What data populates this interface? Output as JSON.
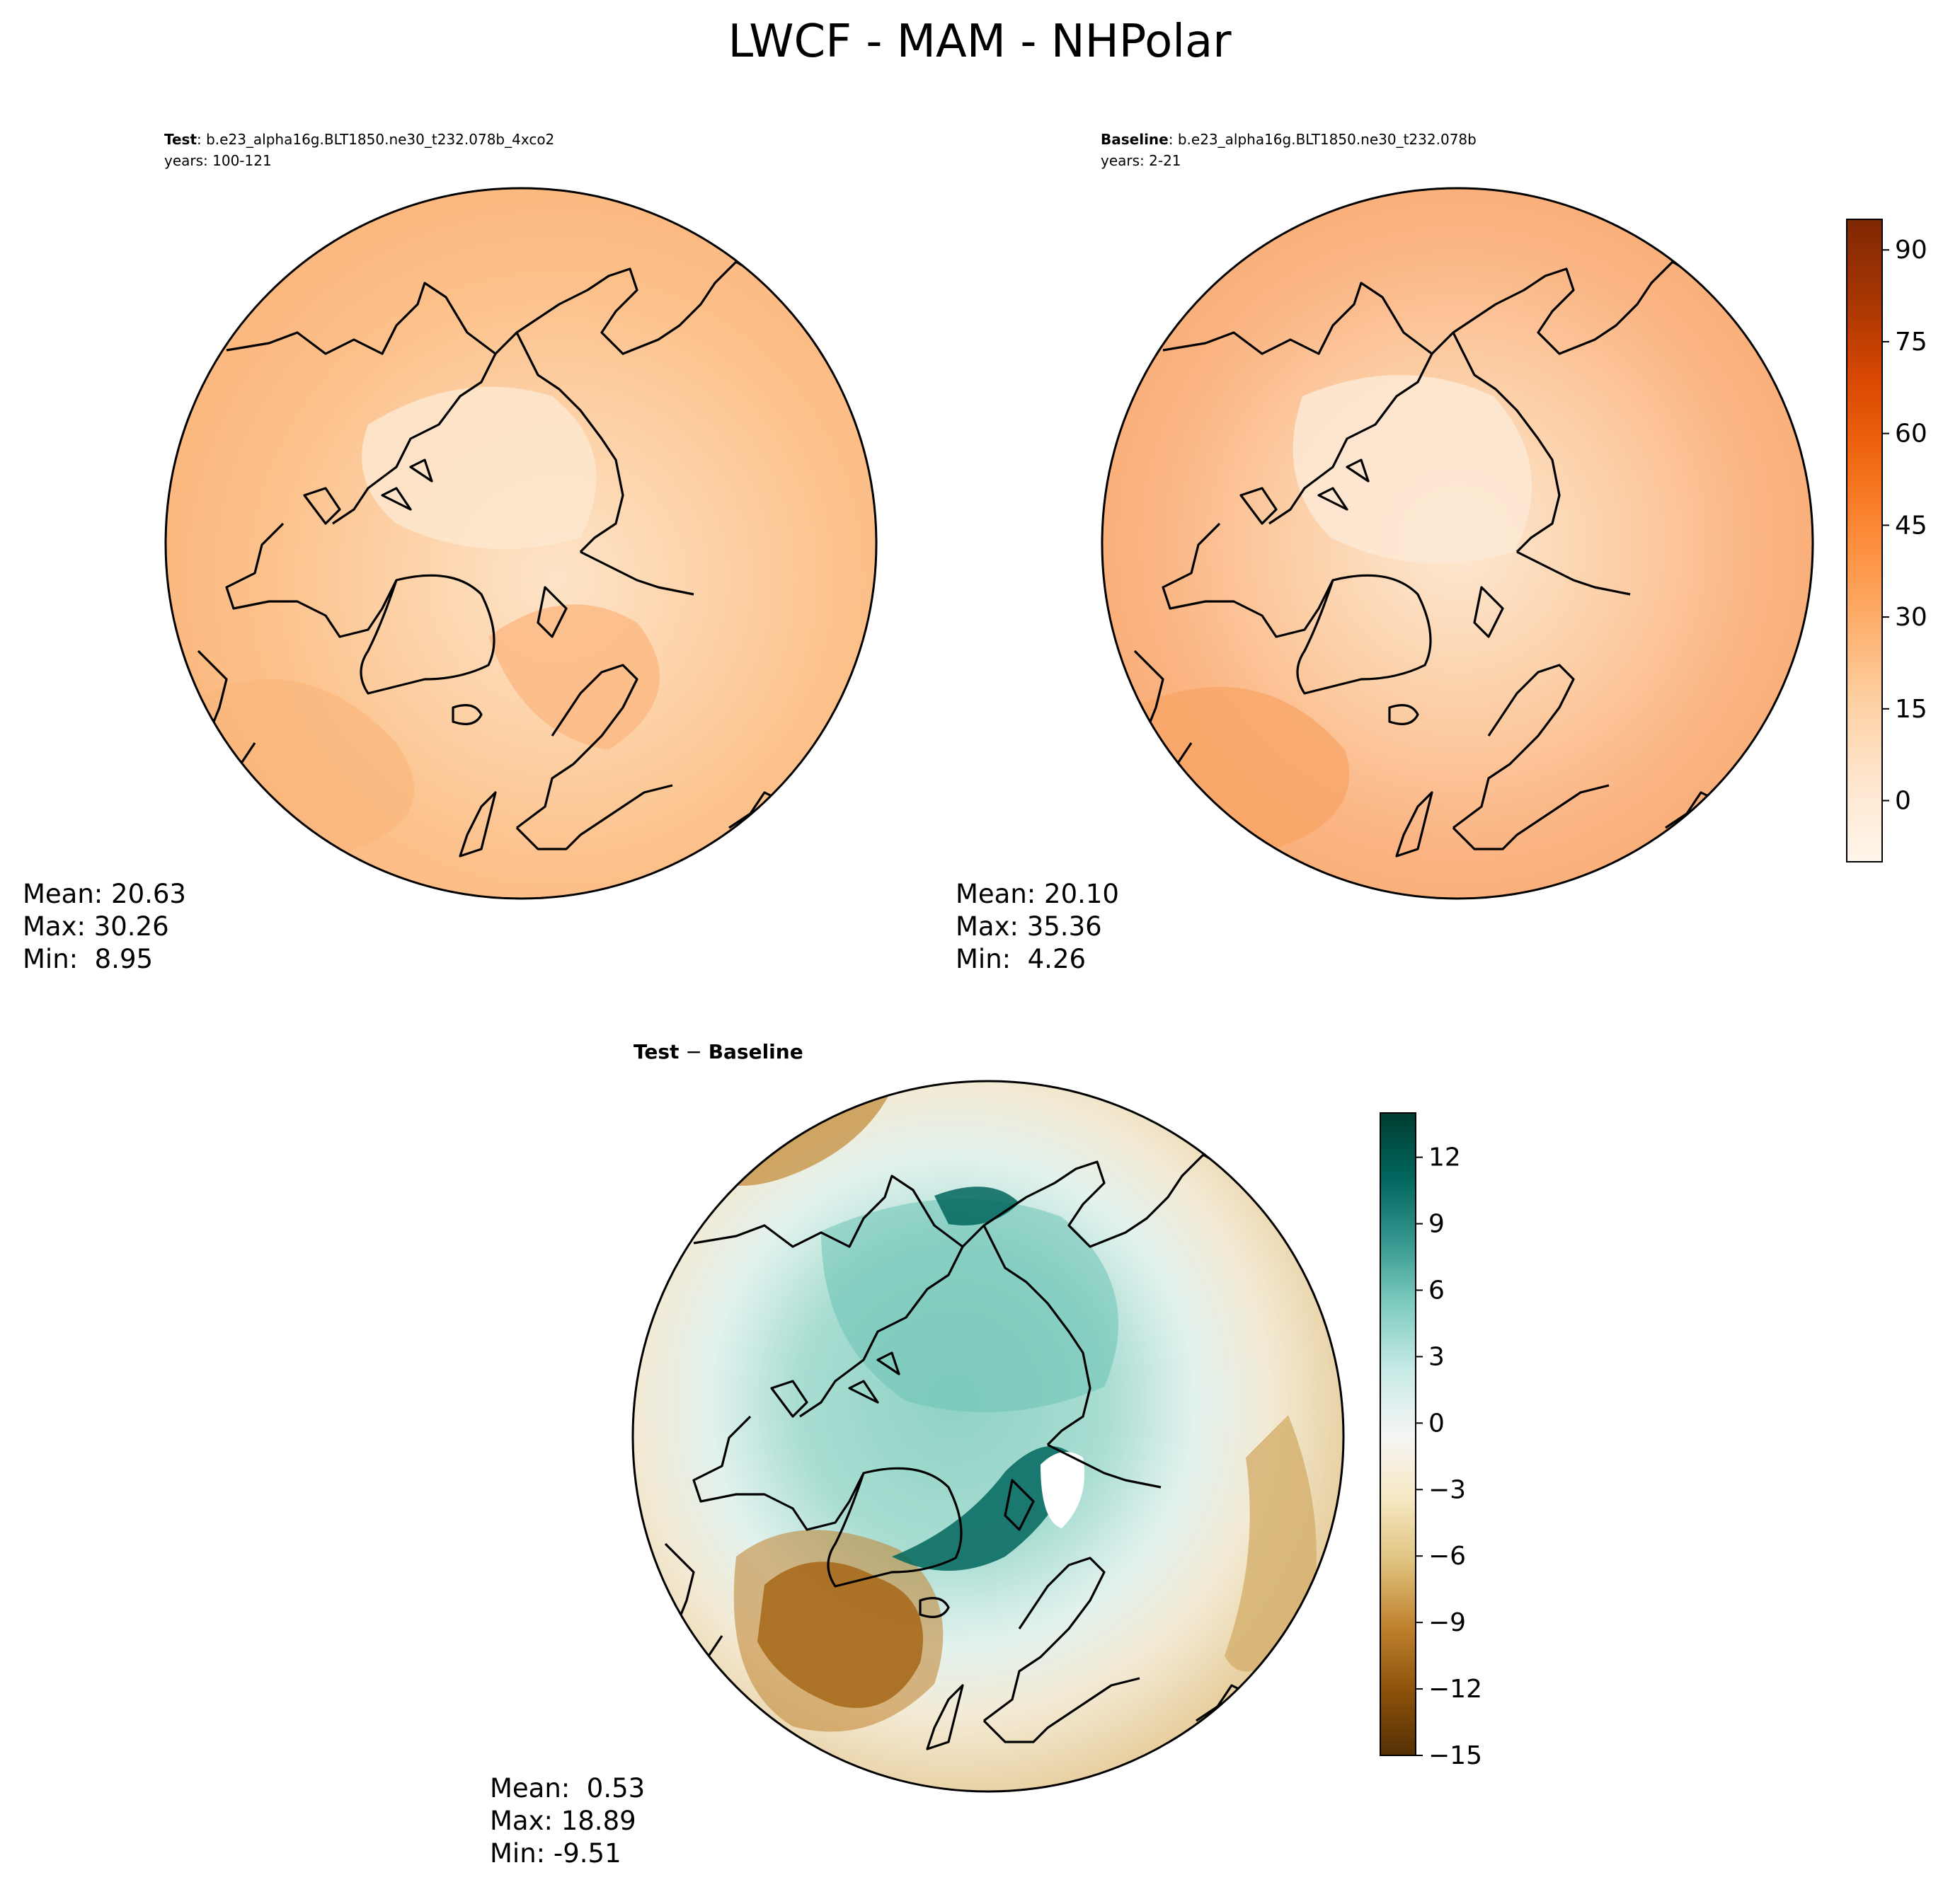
{
  "figure": {
    "title": "LWCF - MAM - NHPolar"
  },
  "panels": {
    "test": {
      "label": "Test",
      "case": ": b.e23_alpha16g.BLT1850.ne30_t232.078b_4xco2",
      "years": "years: 100-121",
      "stats": {
        "mean": "Mean: 20.63",
        "max": "Max: 30.26",
        "min": "Min:  8.95"
      }
    },
    "baseline": {
      "label": "Baseline",
      "case": ": b.e23_alpha16g.BLT1850.ne30_t232.078b",
      "years": "years: 2-21",
      "stats": {
        "mean": "Mean: 20.10",
        "max": "Max: 35.36",
        "min": "Min:  4.26"
      }
    },
    "diff": {
      "label_test": "Test",
      "label_sep": " − ",
      "label_base": "Baseline",
      "stats": {
        "mean": "Mean:  0.53",
        "max": "Max: 18.89",
        "min": "Min: -9.51"
      }
    }
  },
  "chart_data": [
    {
      "type": "heatmap",
      "title": "Test : b.e23_alpha16g.BLT1850.ne30_t232.078b_4xco2",
      "projection": "north polar stereographic",
      "field": "LWCF",
      "season": "MAM",
      "mean": 20.63,
      "max": 30.26,
      "min": 8.95
    },
    {
      "type": "heatmap",
      "title": "Baseline : b.e23_alpha16g.BLT1850.ne30_t232.078b",
      "projection": "north polar stereographic",
      "field": "LWCF",
      "season": "MAM",
      "mean": 20.1,
      "max": 35.36,
      "min": 4.26
    },
    {
      "type": "heatmap",
      "title": "Test − Baseline",
      "projection": "north polar stereographic",
      "field": "LWCF difference",
      "season": "MAM",
      "mean": 0.53,
      "max": 18.89,
      "min": -9.51
    }
  ],
  "colorbars": {
    "main": {
      "range": [
        -10,
        95
      ],
      "ticks": [
        90,
        75,
        60,
        45,
        30,
        15,
        0
      ],
      "tick_labels": [
        "90",
        "75",
        "60",
        "45",
        "30",
        "15",
        "0"
      ],
      "colormap": "Oranges",
      "stops": [
        "#fff5eb",
        "#fee6ce",
        "#fdd0a2",
        "#fdae6b",
        "#fd8d3c",
        "#f16913",
        "#d94801",
        "#a63603",
        "#7f2704"
      ]
    },
    "diff": {
      "range": [
        -15,
        14
      ],
      "ticks": [
        12,
        9,
        6,
        3,
        0,
        -3,
        -6,
        -9,
        -12,
        -15
      ],
      "tick_labels": [
        "12",
        "9",
        "6",
        "3",
        "0",
        "−3",
        "−6",
        "−9",
        "−12",
        "−15"
      ],
      "colormap": "BrBG",
      "stops": [
        "#543005",
        "#8c510a",
        "#bf812d",
        "#dfc27d",
        "#f6e8c3",
        "#f5f5f5",
        "#c7eae5",
        "#80cdc1",
        "#35978f",
        "#01665e",
        "#003c30"
      ]
    }
  }
}
